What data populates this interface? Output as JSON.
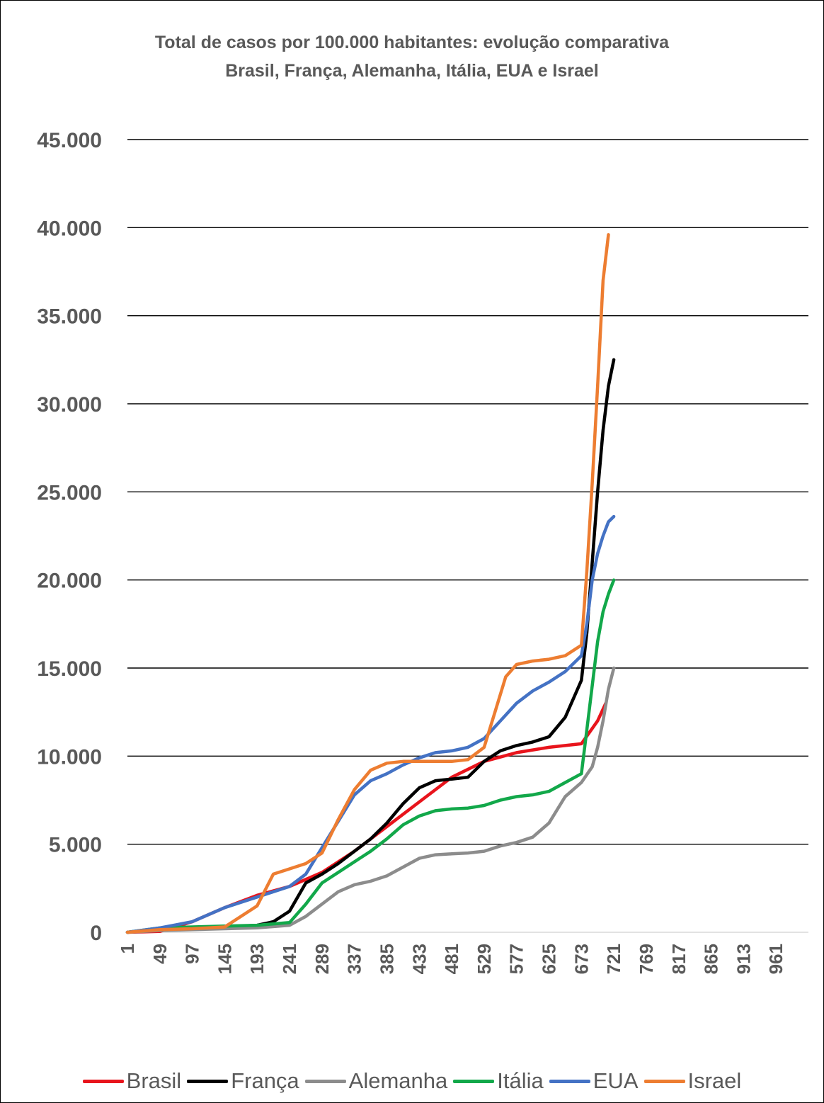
{
  "chart_data": {
    "type": "line",
    "title": "Total de casos por 100.000 habitantes: evolução comparativa",
    "subtitle": "Brasil, França, Alemanha, Itália, EUA e Israel",
    "xlabel": "",
    "ylabel": "",
    "ylim": [
      0,
      45000
    ],
    "xlim": [
      1,
      1009
    ],
    "yticks": [
      0,
      5000,
      10000,
      15000,
      20000,
      25000,
      30000,
      35000,
      40000,
      45000
    ],
    "ytick_labels": [
      "0",
      "5.000",
      "10.000",
      "15.000",
      "20.000",
      "25.000",
      "30.000",
      "35.000",
      "40.000",
      "45.000"
    ],
    "xtick_labels": [
      "1",
      "49",
      "97",
      "145",
      "193",
      "241",
      "289",
      "337",
      "385",
      "433",
      "481",
      "529",
      "577",
      "625",
      "673",
      "721",
      "769",
      "817",
      "865",
      "913",
      "961"
    ],
    "grid": true,
    "legend_position": "bottom",
    "series": [
      {
        "name": "Brasil",
        "color": "#e8141c",
        "x": [
          1,
          49,
          97,
          145,
          193,
          241,
          289,
          337,
          385,
          433,
          481,
          529,
          577,
          625,
          673,
          697,
          709
        ],
        "y": [
          0,
          50,
          600,
          1400,
          2100,
          2600,
          3400,
          4600,
          6000,
          7400,
          8800,
          9700,
          10200,
          10500,
          10700,
          12000,
          13000
        ]
      },
      {
        "name": "França",
        "color": "#000000",
        "x": [
          1,
          49,
          97,
          145,
          193,
          217,
          241,
          265,
          289,
          313,
          337,
          361,
          385,
          409,
          433,
          457,
          481,
          505,
          529,
          553,
          577,
          601,
          625,
          649,
          673,
          681,
          689,
          697,
          705,
          713,
          721
        ],
        "y": [
          0,
          200,
          250,
          300,
          400,
          600,
          1200,
          2800,
          3300,
          3900,
          4600,
          5300,
          6200,
          7300,
          8200,
          8600,
          8700,
          8800,
          9700,
          10300,
          10600,
          10800,
          11100,
          12200,
          14300,
          17000,
          21000,
          25000,
          28500,
          31000,
          32500
        ]
      },
      {
        "name": "Alemanha",
        "color": "#8c8c8c",
        "x": [
          1,
          49,
          97,
          145,
          193,
          241,
          265,
          289,
          313,
          337,
          361,
          385,
          409,
          433,
          457,
          481,
          505,
          529,
          553,
          577,
          601,
          625,
          649,
          673,
          689,
          697,
          705,
          713,
          721
        ],
        "y": [
          0,
          100,
          150,
          200,
          250,
          400,
          900,
          1600,
          2300,
          2700,
          2900,
          3200,
          3700,
          4200,
          4400,
          4450,
          4500,
          4600,
          4900,
          5100,
          5400,
          6200,
          7700,
          8500,
          9400,
          10500,
          12000,
          13800,
          15000
        ]
      },
      {
        "name": "Itália",
        "color": "#12a84a",
        "x": [
          1,
          49,
          97,
          145,
          193,
          241,
          265,
          289,
          313,
          337,
          361,
          385,
          409,
          433,
          457,
          481,
          505,
          529,
          553,
          577,
          601,
          625,
          649,
          673,
          681,
          689,
          697,
          705,
          713,
          721
        ],
        "y": [
          0,
          250,
          300,
          350,
          400,
          550,
          1600,
          2800,
          3400,
          4000,
          4600,
          5300,
          6100,
          6600,
          6900,
          7000,
          7050,
          7200,
          7500,
          7700,
          7800,
          8000,
          8500,
          9000,
          11500,
          14000,
          16500,
          18200,
          19200,
          20000
        ]
      },
      {
        "name": "EUA",
        "color": "#4472c4",
        "x": [
          1,
          49,
          97,
          145,
          193,
          241,
          265,
          289,
          313,
          337,
          361,
          385,
          409,
          433,
          457,
          481,
          505,
          529,
          553,
          577,
          601,
          625,
          649,
          673,
          681,
          689,
          697,
          705,
          713,
          721
        ],
        "y": [
          0,
          250,
          600,
          1400,
          2000,
          2600,
          3300,
          4800,
          6300,
          7800,
          8600,
          9000,
          9500,
          9900,
          10200,
          10300,
          10500,
          11000,
          12000,
          13000,
          13700,
          14200,
          14800,
          15700,
          17500,
          20000,
          21500,
          22500,
          23300,
          23600
        ]
      },
      {
        "name": "Israel",
        "color": "#ed7d31",
        "x": [
          1,
          49,
          97,
          145,
          193,
          217,
          241,
          265,
          289,
          313,
          337,
          361,
          385,
          409,
          433,
          457,
          481,
          505,
          529,
          545,
          561,
          577,
          601,
          625,
          649,
          673,
          681,
          689,
          697,
          705,
          713
        ],
        "y": [
          0,
          150,
          200,
          300,
          1500,
          3300,
          3600,
          3900,
          4500,
          6400,
          8100,
          9200,
          9600,
          9700,
          9700,
          9700,
          9700,
          9800,
          10500,
          12500,
          14500,
          15200,
          15400,
          15500,
          15700,
          16300,
          20500,
          25500,
          31000,
          37000,
          39600
        ]
      }
    ]
  }
}
